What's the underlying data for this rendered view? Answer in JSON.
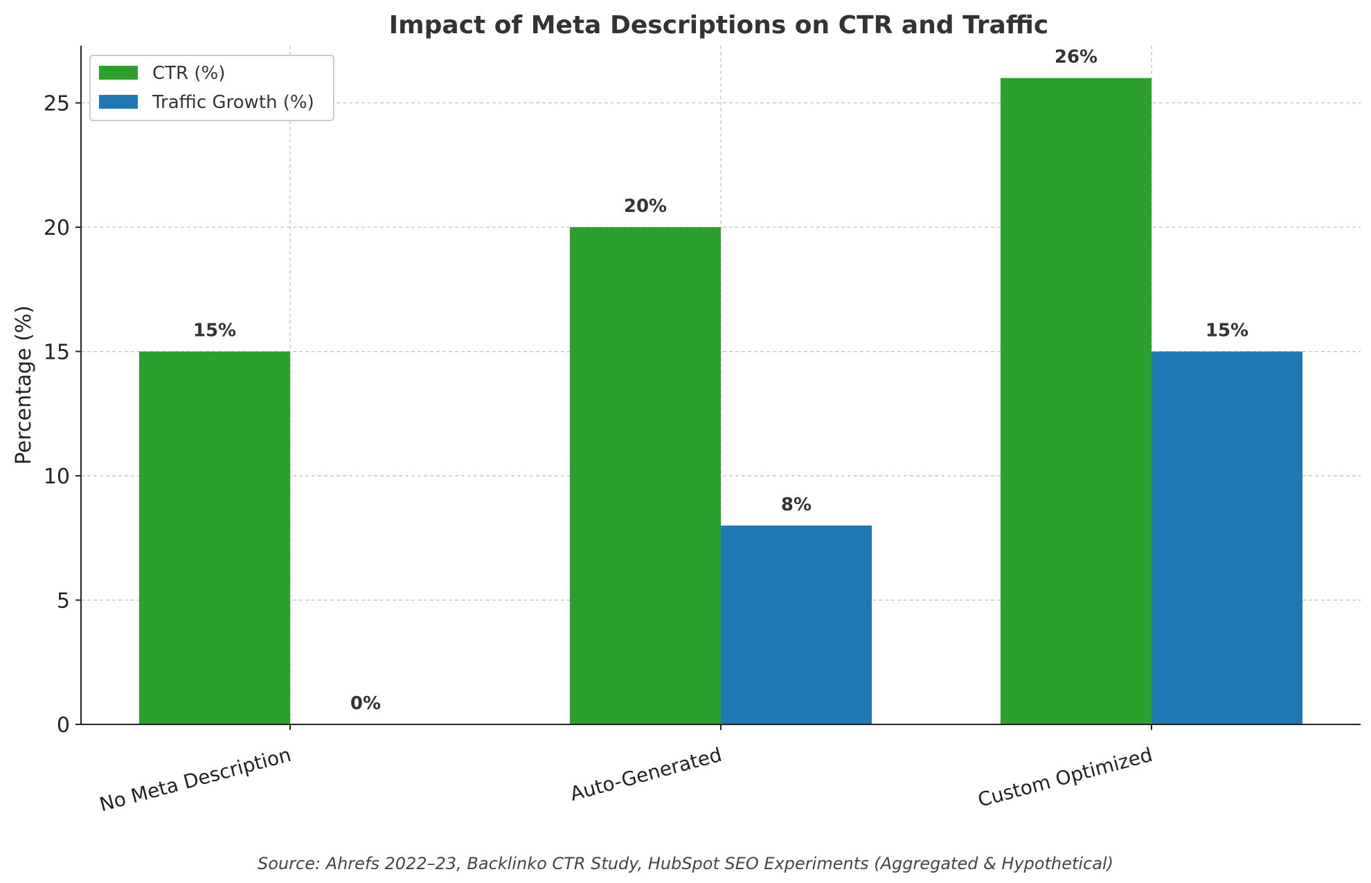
{
  "chart_data": {
    "type": "bar",
    "title": "Impact of Meta Descriptions on CTR and Traffic",
    "xlabel": "",
    "ylabel": "Percentage (%)",
    "categories": [
      "No Meta Description",
      "Auto-Generated",
      "Custom Optimized"
    ],
    "series": [
      {
        "name": "CTR (%)",
        "color": "#2ca02c",
        "values": [
          15,
          20,
          26
        ],
        "labels": [
          "15%",
          "20%",
          "26%"
        ]
      },
      {
        "name": "Traffic Growth (%)",
        "color": "#1f77b4",
        "values": [
          0,
          8,
          15
        ],
        "labels": [
          "0%",
          "8%",
          "15%"
        ]
      }
    ],
    "ylim": [
      0,
      27.3
    ],
    "yticks": [
      0,
      5,
      10,
      15,
      20,
      25
    ],
    "grid": true,
    "legend_position": "top-left",
    "source": "Source: Ahrefs 2022–23, Backlinko CTR Study, HubSpot SEO Experiments (Aggregated & Hypothetical)"
  }
}
